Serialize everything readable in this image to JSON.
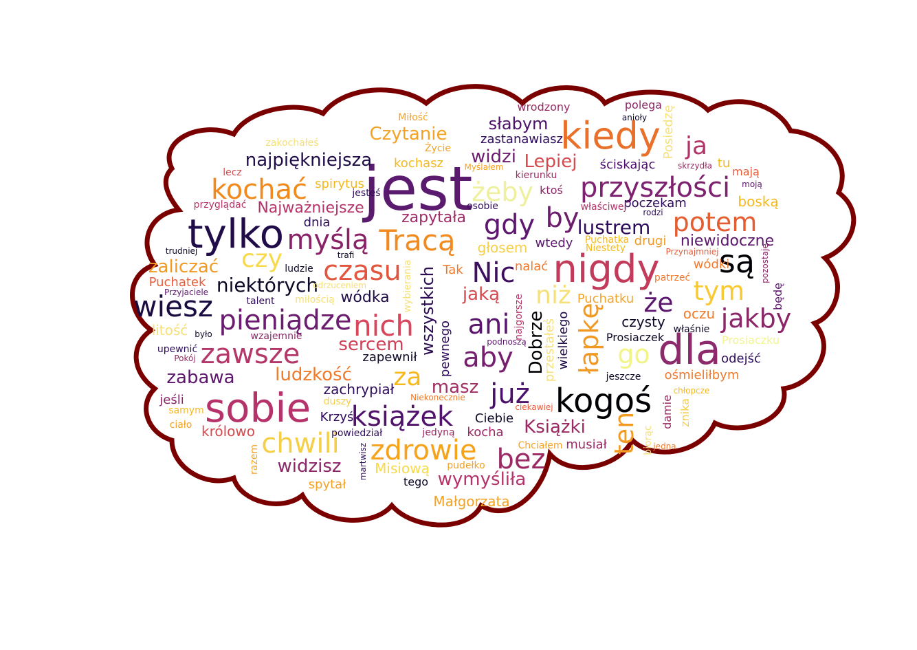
{
  "colors": {
    "cloud_fill": "#ffffff",
    "cloud_stroke": "#7a0000",
    "background": "#ffffff"
  },
  "words": [
    {
      "text": "jest",
      "size": "xxl",
      "color": "#5a1a6e"
    },
    {
      "text": "nigdy",
      "size": "xl",
      "color": "#c23b5a"
    },
    {
      "text": "kiedy",
      "size": "xl",
      "color": "#e8702a"
    },
    {
      "text": "tylko",
      "size": "xl",
      "color": "#1f0c48"
    },
    {
      "text": "sobie",
      "size": "xl",
      "color": "#b5336a"
    },
    {
      "text": "dla",
      "size": "xl",
      "color": "#8c2a6b"
    },
    {
      "text": "kogoś",
      "size": "l",
      "color": "#000004"
    },
    {
      "text": "przyszłości",
      "size": "l",
      "color": "#7d2170"
    },
    {
      "text": "myślą",
      "size": "l",
      "color": "#8a2268"
    },
    {
      "text": "Tracą",
      "size": "l",
      "color": "#f28b1f"
    },
    {
      "text": "kochać",
      "size": "l",
      "color": "#f08a1c"
    },
    {
      "text": "są",
      "size": "l",
      "color": "#000004"
    },
    {
      "text": "wiesz",
      "size": "l",
      "color": "#1a0b40"
    },
    {
      "text": "zawsze",
      "size": "l",
      "color": "#b53668"
    },
    {
      "text": "pieniądze",
      "size": "l",
      "color": "#6a1d6e"
    },
    {
      "text": "nich",
      "size": "l",
      "color": "#d9455a"
    },
    {
      "text": "czasu",
      "size": "l",
      "color": "#e2553f"
    },
    {
      "text": "Nic",
      "size": "l",
      "color": "#3d0f5e"
    },
    {
      "text": "ani",
      "size": "l",
      "color": "#5b166e"
    },
    {
      "text": "aby",
      "size": "l",
      "color": "#761f6f"
    },
    {
      "text": "zdrowie",
      "size": "l",
      "color": "#f6a21a"
    },
    {
      "text": "książek",
      "size": "l",
      "color": "#50126b"
    },
    {
      "text": "chwili",
      "size": "l",
      "color": "#f5cf47"
    },
    {
      "text": "bez",
      "size": "l",
      "color": "#9b2964"
    },
    {
      "text": "już",
      "size": "l",
      "color": "#4a106a"
    },
    {
      "text": "gdy",
      "size": "l",
      "color": "#5d176e"
    },
    {
      "text": "by",
      "size": "l",
      "color": "#6c1d6e"
    },
    {
      "text": "potem",
      "size": "l",
      "color": "#e55c30"
    },
    {
      "text": "jakby",
      "size": "l",
      "color": "#8b2668"
    },
    {
      "text": "tym",
      "size": "l",
      "color": "#f8c932"
    },
    {
      "text": "że",
      "size": "l",
      "color": "#5c176d"
    },
    {
      "text": "go",
      "size": "l",
      "color": "#f2f48a"
    },
    {
      "text": "ja",
      "size": "l",
      "color": "#b33468"
    },
    {
      "text": "żeby",
      "size": "l",
      "color": "#eef0a0"
    },
    {
      "text": "niż",
      "size": "l",
      "color": "#f5e07a"
    },
    {
      "text": "łapkę",
      "size": "l",
      "color": "#f09a24"
    },
    {
      "text": "ten",
      "size": "l",
      "color": "#f29a24"
    },
    {
      "text": "za",
      "size": "l",
      "color": "#f5b91d"
    },
    {
      "text": "czy",
      "size": "l",
      "color": "#f7d94a"
    },
    {
      "text": "wszystkich",
      "size": "m",
      "color": "#2b0b52"
    },
    {
      "text": "Dobrze",
      "size": "m",
      "color": "#000004"
    },
    {
      "text": "Czytanie",
      "size": "m",
      "color": "#f3a224"
    },
    {
      "text": "najpiękniejsza",
      "size": "m",
      "color": "#1f0c48"
    },
    {
      "text": "widzi",
      "size": "m",
      "color": "#6a1d6e"
    },
    {
      "text": "Lepiej",
      "size": "m",
      "color": "#d44a4f"
    },
    {
      "text": "słabym",
      "size": "m",
      "color": "#4a106a"
    },
    {
      "text": "lustrem",
      "size": "m",
      "color": "#2d0b5a"
    },
    {
      "text": "niektórych",
      "size": "m",
      "color": "#0c0826"
    },
    {
      "text": "sercem",
      "size": "m",
      "color": "#cc4058"
    },
    {
      "text": "ludzkość",
      "size": "m",
      "color": "#f0792a"
    },
    {
      "text": "zabawa",
      "size": "m",
      "color": "#5c176d"
    },
    {
      "text": "widzisz",
      "size": "m",
      "color": "#8b2668"
    },
    {
      "text": "masz",
      "size": "m",
      "color": "#a22f64"
    },
    {
      "text": "wymyśliła",
      "size": "m",
      "color": "#b5336a"
    },
    {
      "text": "Książki",
      "size": "m",
      "color": "#9b2964"
    },
    {
      "text": "jaką",
      "size": "m",
      "color": "#d44a4f"
    },
    {
      "text": "zaliczać",
      "size": "m",
      "color": "#f09a24"
    },
    {
      "text": "Najważniejsze",
      "size": "m",
      "color": "#b33468"
    },
    {
      "text": "zapytała",
      "size": "m",
      "color": "#a02c67"
    },
    {
      "text": "wódka",
      "size": "m",
      "color": "#1f0c48"
    },
    {
      "text": "niewidoczne",
      "size": "m",
      "color": "#5c176d"
    },
    {
      "text": "odejść",
      "size": "s",
      "color": "#2d0b5a"
    },
    {
      "text": "ośmieliłbym",
      "size": "s",
      "color": "#f0792a"
    },
    {
      "text": "oczu",
      "size": "s",
      "color": "#f0792a"
    },
    {
      "text": "czysty",
      "size": "s",
      "color": "#0c0826"
    },
    {
      "text": "wódki",
      "size": "s",
      "color": "#f0792a"
    },
    {
      "text": "Puchatek",
      "size": "s",
      "color": "#e85c3a"
    },
    {
      "text": "Puchatku",
      "size": "s",
      "color": "#f3a224"
    },
    {
      "text": "zachrypiał",
      "size": "s",
      "color": "#2d0b5a"
    },
    {
      "text": "zapewnił",
      "size": "s",
      "color": "#0c0826"
    },
    {
      "text": "Krzyś",
      "size": "s",
      "color": "#2d0b5a"
    },
    {
      "text": "Ciebie",
      "size": "s",
      "color": "#0c0826"
    },
    {
      "text": "kocha",
      "size": "s",
      "color": "#9b2964"
    },
    {
      "text": "musiał",
      "size": "s",
      "color": "#9b2964"
    },
    {
      "text": "Misiową",
      "size": "s",
      "color": "#f7d94a"
    },
    {
      "text": "Małgorzata",
      "size": "s",
      "color": "#f3a224"
    },
    {
      "text": "spytał",
      "size": "s",
      "color": "#f3a224"
    },
    {
      "text": "królowo",
      "size": "s",
      "color": "#d44a4f"
    },
    {
      "text": "Prosiaczek",
      "size": "s",
      "color": "#0c0826"
    },
    {
      "text": "Prosiaczku",
      "size": "s",
      "color": "#f2f48a"
    },
    {
      "text": "spirytus",
      "size": "s",
      "color": "#f5b91d"
    },
    {
      "text": "kochasz",
      "size": "s",
      "color": "#f5b91d"
    },
    {
      "text": "zastanawiasz",
      "size": "s",
      "color": "#2d0b5a"
    },
    {
      "text": "ściskając",
      "size": "s",
      "color": "#4a106a"
    },
    {
      "text": "poczekam",
      "size": "s",
      "color": "#2d0b5a"
    },
    {
      "text": "boską",
      "size": "s",
      "color": "#f5b91d"
    },
    {
      "text": "głosem",
      "size": "s",
      "color": "#f5cf47"
    },
    {
      "text": "wtedy",
      "size": "s",
      "color": "#5c176d"
    },
    {
      "text": "drugi",
      "size": "s",
      "color": "#f09a24"
    },
    {
      "text": "nalać",
      "size": "s",
      "color": "#f0792a"
    },
    {
      "text": "dnia",
      "size": "s",
      "color": "#2d0b5a"
    },
    {
      "text": "wrodzony",
      "size": "s",
      "color": "#9b2964"
    },
    {
      "text": "polega",
      "size": "s",
      "color": "#8b2668"
    },
    {
      "text": "tu",
      "size": "s",
      "color": "#f5b91d"
    },
    {
      "text": "mają",
      "size": "s",
      "color": "#e85c3a"
    },
    {
      "text": "ktoś",
      "size": "s",
      "color": "#8b2668"
    },
    {
      "text": "jeśli",
      "size": "s",
      "color": "#8b2668"
    },
    {
      "text": "powiedział",
      "size": "xs",
      "color": "#2d0b5a"
    },
    {
      "text": "jedyną",
      "size": "xs",
      "color": "#9b2964"
    },
    {
      "text": "pudełko",
      "size": "xs",
      "color": "#f3a224"
    },
    {
      "text": "tego",
      "size": "xs",
      "color": "#0c0826"
    },
    {
      "text": "ludzie",
      "size": "xs",
      "color": "#0c0826"
    },
    {
      "text": "talent",
      "size": "xs",
      "color": "#2d0b5a"
    },
    {
      "text": "litość",
      "size": "s",
      "color": "#f5e07a"
    },
    {
      "text": "upewnić",
      "size": "xs",
      "color": "#2d0b5a"
    },
    {
      "text": "wzajemnie",
      "size": "xs",
      "color": "#8b2668"
    },
    {
      "text": "Pokój",
      "size": "xs",
      "color": "#9b2964"
    },
    {
      "text": "ciało",
      "size": "xs",
      "color": "#f3a224"
    },
    {
      "text": "samym",
      "size": "xs",
      "color": "#f5b91d"
    },
    {
      "text": "duszy",
      "size": "xs",
      "color": "#f5cf47"
    },
    {
      "text": "Życie",
      "size": "xs",
      "color": "#f3a224"
    },
    {
      "text": "Myślałem",
      "size": "xs",
      "color": "#f3a224"
    },
    {
      "text": "kierunku",
      "size": "xs",
      "color": "#9b2964"
    },
    {
      "text": "osobie",
      "size": "xs",
      "color": "#2d0b5a"
    },
    {
      "text": "Tak",
      "size": "s",
      "color": "#f0792a"
    },
    {
      "text": "trafi",
      "size": "xs",
      "color": "#0c0826"
    },
    {
      "text": "jesteś",
      "size": "xs",
      "color": "#2d0b5a"
    },
    {
      "text": "lecz",
      "size": "xs",
      "color": "#d44a4f"
    },
    {
      "text": "przyglądać",
      "size": "xs",
      "color": "#b33468"
    },
    {
      "text": "Miłość",
      "size": "xs",
      "color": "#f3a224"
    },
    {
      "text": "patrzeć",
      "size": "xs",
      "color": "#f0792a"
    },
    {
      "text": "właśnie",
      "size": "xs",
      "color": "#0c0826"
    },
    {
      "text": "jeszcze",
      "size": "xs",
      "color": "#0c0826"
    },
    {
      "text": "damie",
      "size": "xs",
      "color": "#9b2964"
    },
    {
      "text": "znika",
      "size": "xs",
      "color": "#f5cf47"
    },
    {
      "text": "ciekawiej",
      "size": "xs",
      "color": "#e85c3a"
    },
    {
      "text": "Chciałem",
      "size": "xs",
      "color": "#f3a224"
    },
    {
      "text": "pewnego",
      "size": "s",
      "color": "#2d0b5a"
    },
    {
      "text": "wielkiego",
      "size": "s",
      "color": "#1f0c48"
    },
    {
      "text": "przestałeś",
      "size": "s",
      "color": "#f5e07a"
    },
    {
      "text": "najgorsze",
      "size": "xs",
      "color": "#b33468"
    },
    {
      "text": "wybierania",
      "size": "xs",
      "color": "#f5e07a"
    },
    {
      "text": "właściwej",
      "size": "xs",
      "color": "#b33468"
    },
    {
      "text": "Przyjaciele",
      "size": "xs",
      "color": "#5c176d"
    },
    {
      "text": "skrzydła",
      "size": "xs",
      "color": "#9b2964"
    },
    {
      "text": "moją",
      "size": "xs",
      "color": "#5c176d"
    },
    {
      "text": "anioły",
      "size": "xs",
      "color": "#0c0826"
    },
    {
      "text": "zakochałeś",
      "size": "xs",
      "color": "#f5e07a"
    },
    {
      "text": "rodzi",
      "size": "xs",
      "color": "#2d0b5a"
    },
    {
      "text": "pozostaję",
      "size": "xs",
      "color": "#8b2668"
    },
    {
      "text": "będę",
      "size": "s",
      "color": "#5c176d"
    },
    {
      "text": "Posiedzę",
      "size": "s",
      "color": "#f5e07a"
    },
    {
      "text": "trudniej",
      "size": "xs",
      "color": "#0c0826"
    },
    {
      "text": "podnoszą",
      "size": "xs",
      "color": "#5c176d"
    },
    {
      "text": "Niestety",
      "size": "xs",
      "color": "#f5b91d"
    },
    {
      "text": "Puchatka",
      "size": "xs",
      "color": "#f5b91d"
    },
    {
      "text": "Przynajmniej",
      "size": "xs",
      "color": "#e85c3a"
    },
    {
      "text": "było",
      "size": "xs",
      "color": "#0c0826"
    },
    {
      "text": "martwisz",
      "size": "xs",
      "color": "#2d0b5a"
    },
    {
      "text": "biorąc",
      "size": "xs",
      "color": "#f5e07a"
    },
    {
      "text": "jedna",
      "size": "xs",
      "color": "#f0792a"
    },
    {
      "text": "razem",
      "size": "xs",
      "color": "#f3a224"
    },
    {
      "text": "chłopcze",
      "size": "xs",
      "color": "#f5b91d"
    },
    {
      "text": "Niekonecznie",
      "size": "xs",
      "color": "#f0792a"
    },
    {
      "text": "odrzuceniem",
      "size": "xs",
      "color": "#f5e07a"
    },
    {
      "text": "miłością",
      "size": "xs",
      "color": "#f5e07a"
    }
  ]
}
